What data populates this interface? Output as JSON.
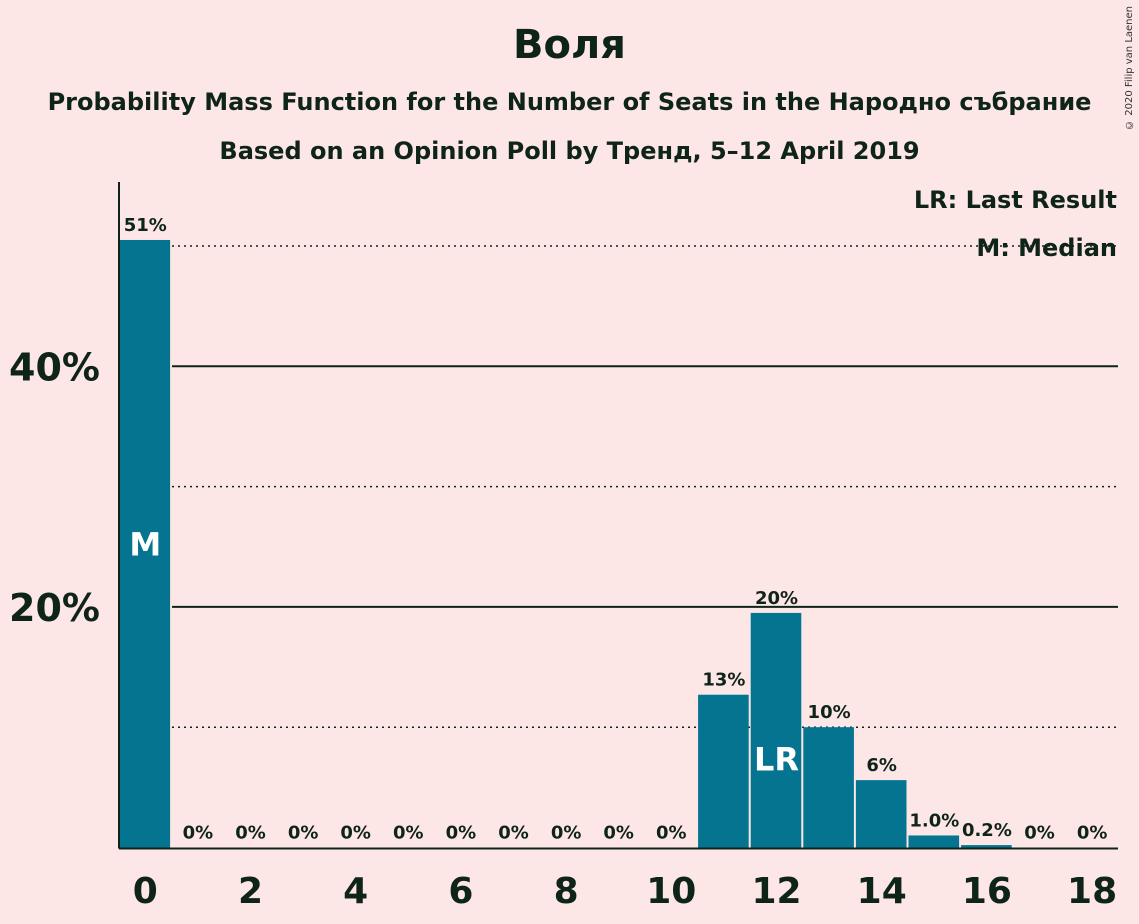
{
  "title": "Воля",
  "subtitle": "Probability Mass Function for the Number of Seats in the Народно събрание",
  "subtitle2": "Based on an Opinion Poll by Тренд, 5–12 April 2019",
  "copyright": "© 2020 Filip van Laenen",
  "legend": {
    "last_result": "LR: Last Result",
    "median": "M: Median"
  },
  "colors": {
    "background": "#fde6e6",
    "bar": "#047490",
    "text": "#0e2418"
  },
  "chart_data": {
    "type": "bar",
    "x": [
      0,
      1,
      2,
      3,
      4,
      5,
      6,
      7,
      8,
      9,
      10,
      11,
      12,
      13,
      14,
      15,
      16,
      17,
      18
    ],
    "values": [
      50.5,
      0,
      0,
      0,
      0,
      0,
      0,
      0,
      0,
      0,
      0,
      12.7,
      19.5,
      10,
      5.6,
      1.0,
      0.2,
      0,
      0
    ],
    "labels": [
      "51%",
      "0%",
      "0%",
      "0%",
      "0%",
      "0%",
      "0%",
      "0%",
      "0%",
      "0%",
      "0%",
      "13%",
      "20%",
      "10%",
      "6%",
      "1.0%",
      "0.2%",
      "0%",
      "0%"
    ],
    "x_ticks": [
      0,
      2,
      4,
      6,
      8,
      10,
      12,
      14,
      16,
      18
    ],
    "y_ticks": [
      {
        "value": 20,
        "label": "20%"
      },
      {
        "value": 40,
        "label": "40%"
      }
    ],
    "dotted_gridlines": [
      10,
      30,
      50
    ],
    "ylim": [
      0,
      55
    ],
    "markers": [
      {
        "x": 0,
        "text": "M"
      },
      {
        "x": 12,
        "text": "LR"
      }
    ]
  }
}
